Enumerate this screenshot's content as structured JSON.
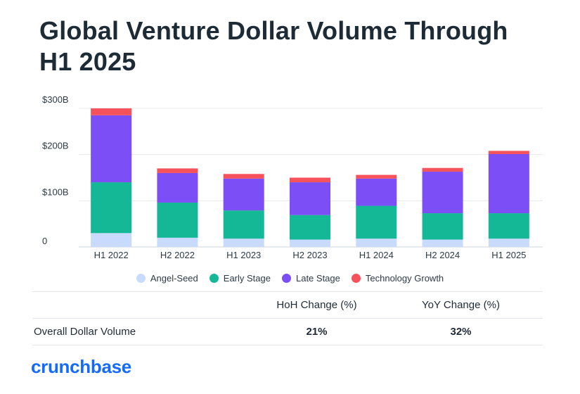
{
  "title": "Global Venture Dollar Volume Through H1 2025",
  "chart_data": {
    "type": "bar",
    "stacked": true,
    "categories": [
      "H1 2022",
      "H2 2022",
      "H1 2023",
      "H2 2023",
      "H1 2024",
      "H2 2024",
      "H1 2025"
    ],
    "series": [
      {
        "name": "Angel-Seed",
        "color": "#c8dafd",
        "values": [
          30,
          20,
          18,
          16,
          18,
          16,
          18
        ]
      },
      {
        "name": "Early Stage",
        "color": "#14b897",
        "values": [
          110,
          76,
          61,
          53,
          71,
          57,
          55
        ]
      },
      {
        "name": "Late Stage",
        "color": "#7b4ff5",
        "values": [
          145,
          64,
          69,
          71,
          59,
          90,
          128
        ]
      },
      {
        "name": "Technology Growth",
        "color": "#f6525b",
        "values": [
          15,
          10,
          10,
          10,
          8,
          8,
          7
        ]
      }
    ],
    "y_ticks": [
      "0",
      "$100B",
      "$200B",
      "$300B"
    ],
    "y_tick_values": [
      0,
      100,
      200,
      300
    ],
    "ylim": [
      0,
      300
    ],
    "grid": true,
    "legend_position": "bottom"
  },
  "stats_table": {
    "headers": [
      "",
      "HoH Change (%)",
      "YoY Change (%)"
    ],
    "rows": [
      {
        "label": "Overall Dollar Volume",
        "hoh": "21%",
        "yoy": "32%"
      }
    ]
  },
  "brand": {
    "logo_text": "crunchbase",
    "color": "#146aff"
  }
}
